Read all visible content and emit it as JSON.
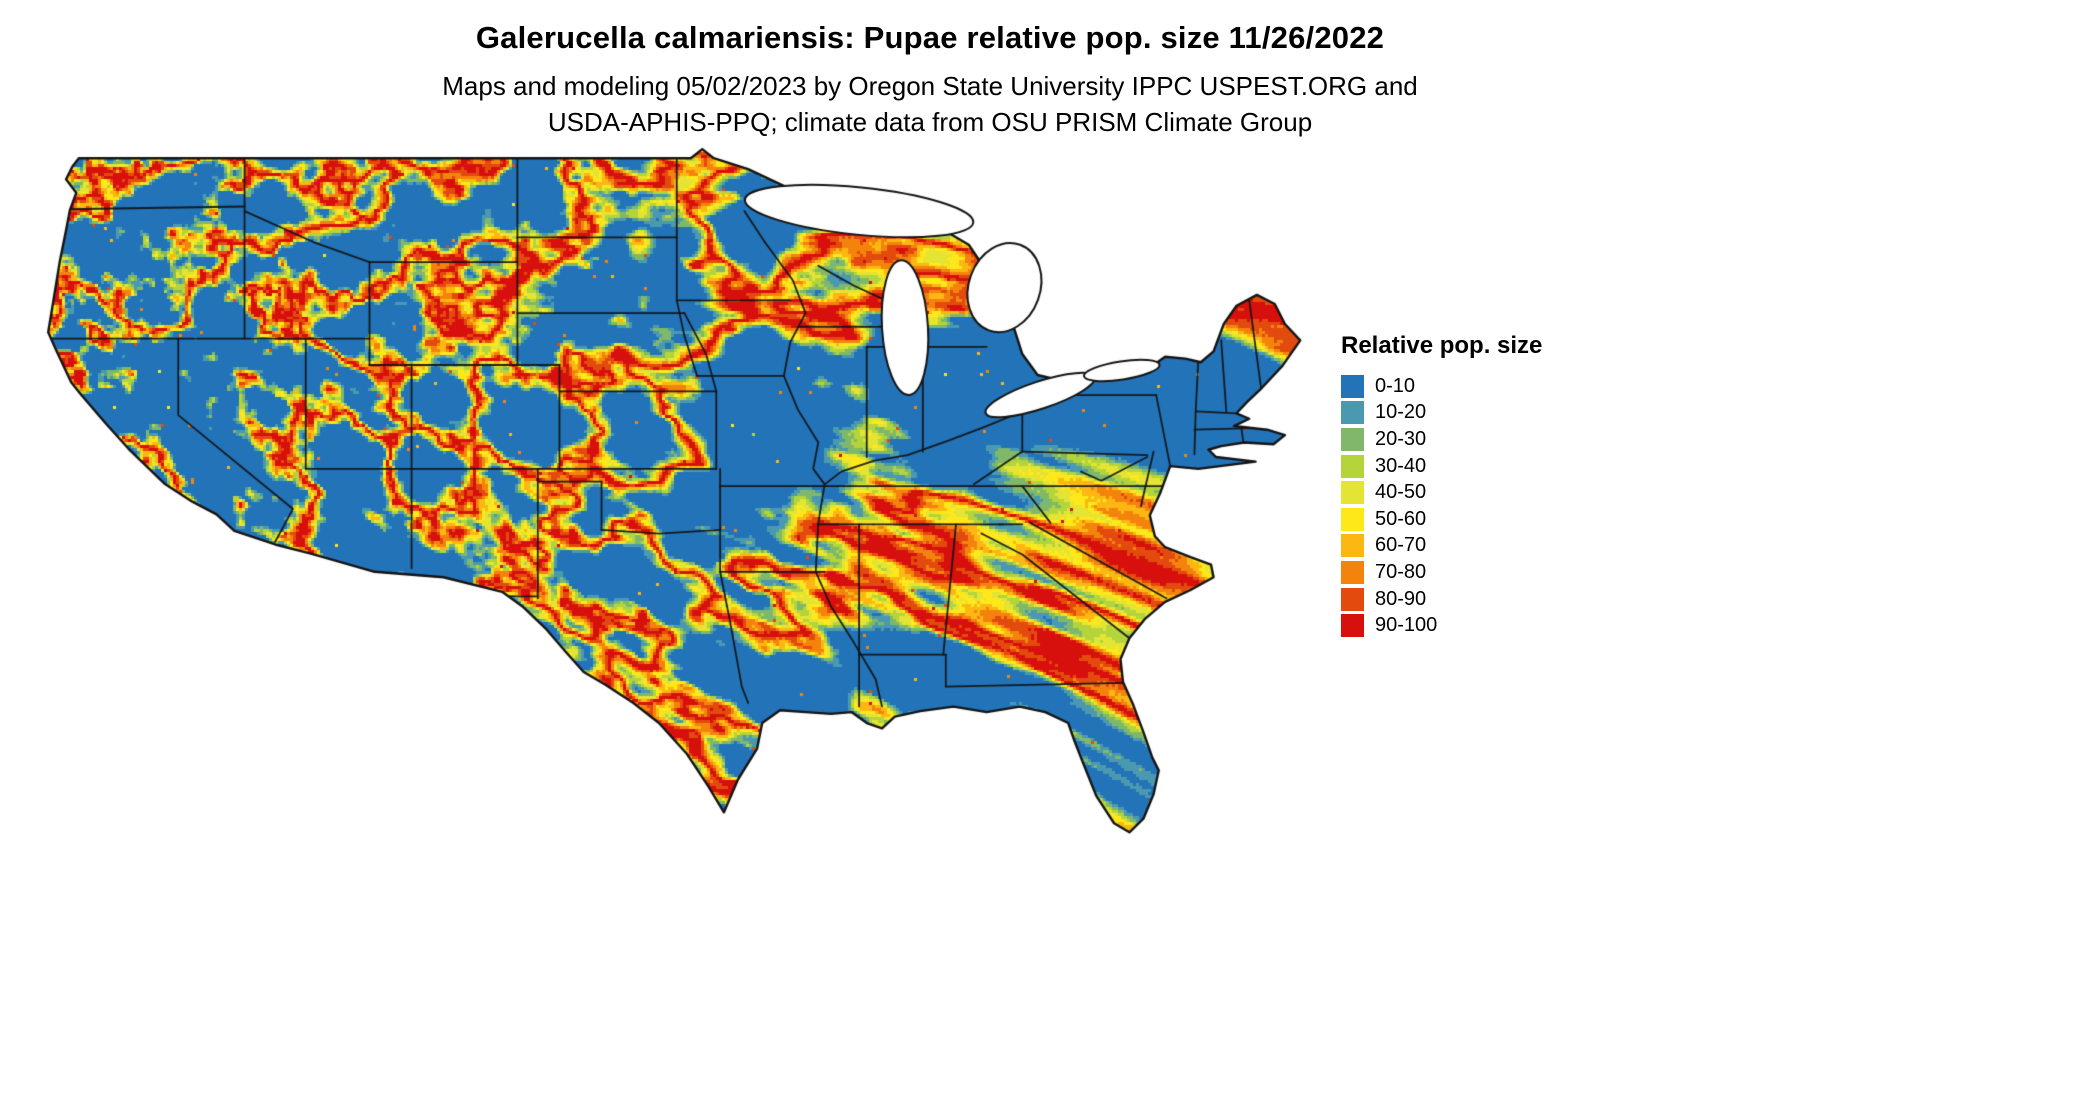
{
  "header": {
    "title": "Galerucella calmariensis: Pupae relative pop. size 11/26/2022",
    "subtitle_line1": "Maps and modeling 05/02/2023 by Oregon State University IPPC USPEST.ORG and",
    "subtitle_line2": "USDA-APHIS-PPQ; climate data from OSU PRISM Climate Group"
  },
  "legend": {
    "title": "Relative pop. size",
    "bins": [
      {
        "label": "0-10",
        "color": "#2273b8"
      },
      {
        "label": "10-20",
        "color": "#4a99b0"
      },
      {
        "label": "20-30",
        "color": "#7fb86a"
      },
      {
        "label": "30-40",
        "color": "#b4d43c"
      },
      {
        "label": "40-50",
        "color": "#e3e433"
      },
      {
        "label": "50-60",
        "color": "#ffe81a"
      },
      {
        "label": "60-70",
        "color": "#fcb713"
      },
      {
        "label": "70-80",
        "color": "#f4830e"
      },
      {
        "label": "80-90",
        "color": "#e34a0d"
      },
      {
        "label": "90-100",
        "color": "#d7100d"
      }
    ]
  },
  "map": {
    "region": "Contiguous United States",
    "dominant_bin": "0-10",
    "water_color": "#ffffff",
    "border_color": "#141414"
  },
  "chart_data": {
    "type": "heatmap",
    "title": "Galerucella calmariensis: Pupae relative pop. size 11/26/2022",
    "region": "Contiguous United States",
    "variable": "Relative pop. size",
    "categories": [
      "0-10",
      "10-20",
      "20-30",
      "30-40",
      "40-50",
      "50-60",
      "60-70",
      "70-80",
      "80-90",
      "90-100"
    ],
    "colors": [
      "#2273b8",
      "#4a99b0",
      "#7fb86a",
      "#b4d43c",
      "#e3e433",
      "#ffe81a",
      "#fcb713",
      "#f4830e",
      "#e34a0d",
      "#d7100d"
    ],
    "legend_title": "Relative pop. size",
    "legend_position": "right",
    "notes": "Raster map over the lower 48 states; most area in lowest bin (blue) with high-value (red) vein-like ridges bordered by orange/yellow/green halos; state borders drawn in black; Great Lakes shown white."
  }
}
